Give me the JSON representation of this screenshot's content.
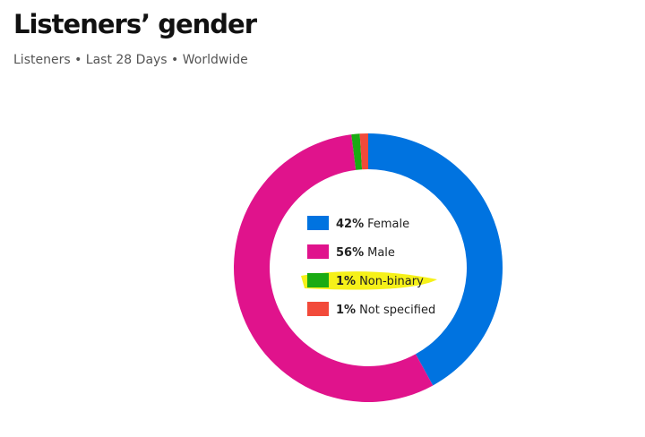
{
  "chart_data": {
    "type": "donut",
    "title": "Listeners’ gender",
    "subtitle": "Listeners • Last 28 Days • Worldwide",
    "categories": [
      "Female",
      "Male",
      "Non-binary",
      "Not specified"
    ],
    "values": [
      42,
      56,
      1,
      1
    ],
    "value_labels": [
      "42%",
      "56%",
      "1%",
      "1%"
    ],
    "colors": [
      "#0073e0",
      "#e0138c",
      "#1aab13",
      "#f24a3a"
    ]
  }
}
